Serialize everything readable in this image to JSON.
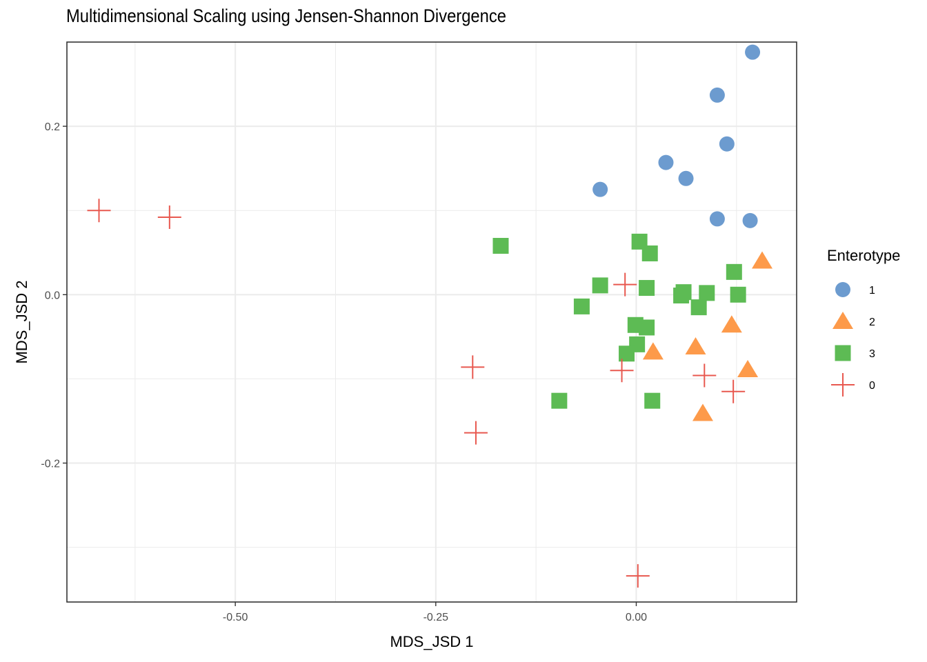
{
  "chart_data": {
    "type": "scatter",
    "title": "Multidimensional Scaling using Jensen-Shannon Divergence",
    "xlabel": "MDS_JSD 1",
    "ylabel": "MDS_JSD 2",
    "xlim": [
      -0.71,
      0.2
    ],
    "ylim": [
      -0.365,
      0.3
    ],
    "x_ticks": [
      -0.5,
      -0.25,
      0.0
    ],
    "x_tick_labels": [
      "-0.50",
      "-0.25",
      "0.00"
    ],
    "y_ticks": [
      -0.2,
      0.0,
      0.2
    ],
    "y_tick_labels": [
      "-0.2",
      "0.0",
      "0.2"
    ],
    "grid": true,
    "legend": {
      "title": "Enterotype",
      "position": "right"
    },
    "series": [
      {
        "name": "1",
        "marker": "circle",
        "color": "#6c9bcf",
        "points": [
          [
            0.145,
            0.288
          ],
          [
            0.101,
            0.237
          ],
          [
            0.113,
            0.179
          ],
          [
            0.037,
            0.157
          ],
          [
            0.062,
            0.138
          ],
          [
            -0.045,
            0.125
          ],
          [
            0.101,
            0.09
          ],
          [
            0.142,
            0.088
          ]
        ]
      },
      {
        "name": "2",
        "marker": "triangle",
        "color": "#fd9a4a",
        "points": [
          [
            0.157,
            0.04
          ],
          [
            0.119,
            -0.036
          ],
          [
            0.139,
            -0.089
          ],
          [
            0.074,
            -0.062
          ],
          [
            0.021,
            -0.068
          ],
          [
            0.083,
            -0.141
          ]
        ]
      },
      {
        "name": "3",
        "marker": "square",
        "color": "#5dbb54",
        "points": [
          [
            -0.169,
            0.058
          ],
          [
            0.004,
            0.063
          ],
          [
            0.017,
            0.049
          ],
          [
            0.122,
            0.027
          ],
          [
            -0.045,
            0.011
          ],
          [
            0.013,
            0.008
          ],
          [
            0.059,
            0.003
          ],
          [
            0.056,
            -0.001
          ],
          [
            0.088,
            0.002
          ],
          [
            0.127,
            0.0
          ],
          [
            -0.068,
            -0.014
          ],
          [
            0.078,
            -0.015
          ],
          [
            -0.001,
            -0.036
          ],
          [
            0.013,
            -0.039
          ],
          [
            0.001,
            -0.059
          ],
          [
            -0.012,
            -0.07
          ],
          [
            -0.096,
            -0.126
          ],
          [
            0.02,
            -0.126
          ]
        ]
      },
      {
        "name": "0",
        "marker": "plus",
        "color": "#e8584f",
        "points": [
          [
            -0.67,
            0.1
          ],
          [
            -0.582,
            0.092
          ],
          [
            -0.014,
            0.012
          ],
          [
            -0.204,
            -0.086
          ],
          [
            -0.018,
            -0.09
          ],
          [
            0.085,
            -0.096
          ],
          [
            0.121,
            -0.115
          ],
          [
            -0.2,
            -0.164
          ],
          [
            0.002,
            -0.334
          ]
        ]
      }
    ]
  }
}
